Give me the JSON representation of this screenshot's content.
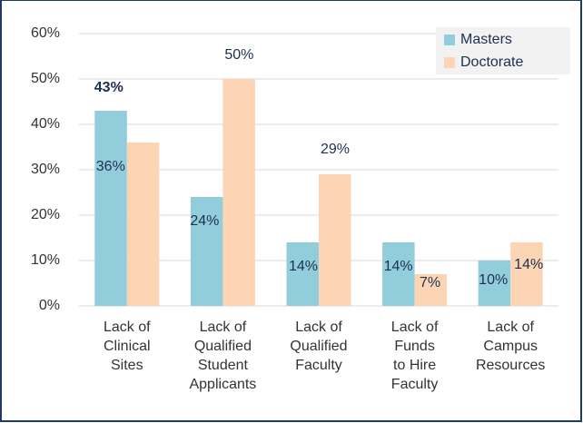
{
  "chart_data": {
    "type": "bar",
    "categories": [
      [
        "Lack of",
        "Clinical",
        "Sites"
      ],
      [
        "Lack of",
        "Qualified",
        "Student",
        "Applicants"
      ],
      [
        "Lack of",
        "Qualified",
        "Faculty"
      ],
      [
        "Lack of",
        "Funds",
        "to Hire",
        "Faculty"
      ],
      [
        "Lack of",
        "Campus",
        "Resources"
      ]
    ],
    "series": [
      {
        "name": "Masters",
        "color": "#92cddc",
        "values": [
          43,
          24,
          14,
          14,
          10
        ],
        "value_labels": [
          "43%",
          "24%",
          "14%",
          "14%",
          "10%"
        ]
      },
      {
        "name": "Doctorate",
        "color": "#fcd5b5",
        "values": [
          36,
          50,
          29,
          7,
          14
        ],
        "value_labels": [
          "36%",
          "50%",
          "29%",
          "7%",
          "14%"
        ]
      }
    ],
    "ylim": [
      0,
      60
    ],
    "yticks": [
      {
        "value": 0,
        "label": "0%"
      },
      {
        "value": 10,
        "label": "10%"
      },
      {
        "value": 20,
        "label": "20%"
      },
      {
        "value": 30,
        "label": "30%"
      },
      {
        "value": 40,
        "label": "40%"
      },
      {
        "value": 50,
        "label": "50%"
      },
      {
        "value": 60,
        "label": "60%"
      }
    ],
    "grid": true,
    "legend": "top-right"
  }
}
